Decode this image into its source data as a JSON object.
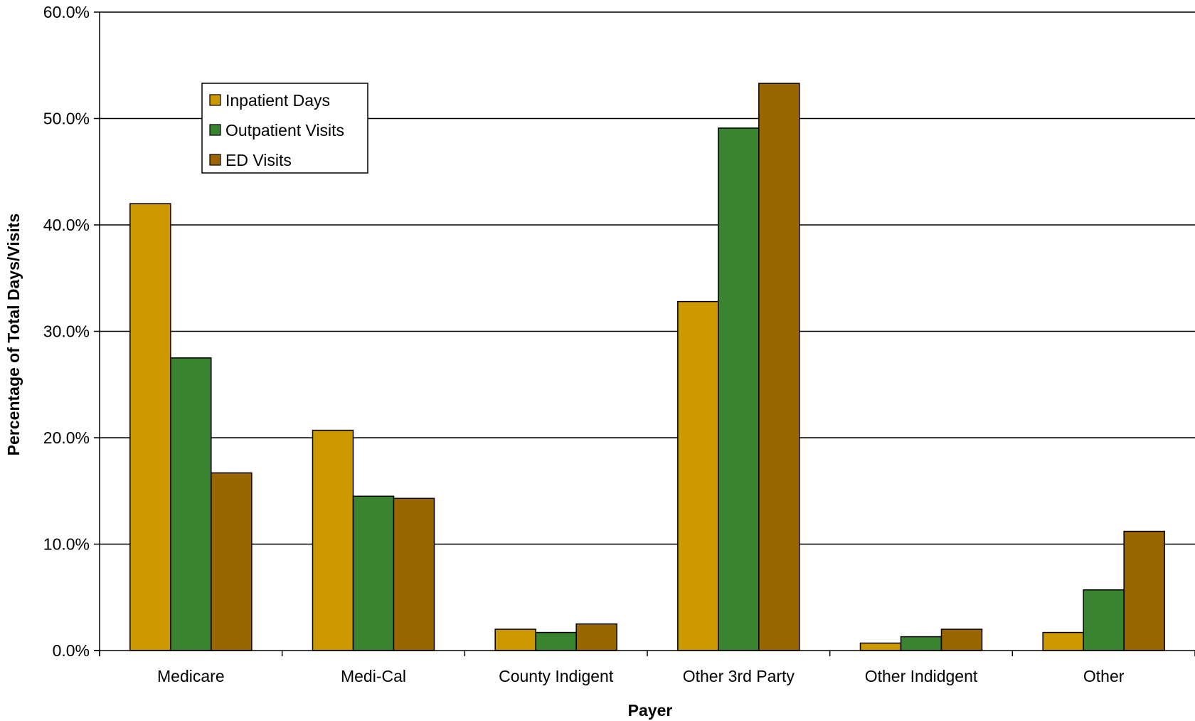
{
  "chart_data": {
    "type": "bar",
    "title": "",
    "xlabel": "Payer",
    "ylabel": "Percentage of Total Days/Visits",
    "ylim": [
      0,
      60
    ],
    "yticks": [
      "0.0%",
      "10.0%",
      "20.0%",
      "30.0%",
      "40.0%",
      "50.0%",
      "60.0%"
    ],
    "grid": true,
    "legend_position": "upper-left",
    "categories": [
      "Medicare",
      "Medi-Cal",
      "County Indigent",
      "Other 3rd Party",
      "Other Indidgent",
      "Other"
    ],
    "series": [
      {
        "name": "Inpatient Days",
        "color": "#CC9900",
        "values": [
          42.0,
          20.7,
          2.0,
          32.8,
          0.7,
          1.7
        ]
      },
      {
        "name": "Outpatient Visits",
        "color": "#3A8331",
        "values": [
          27.5,
          14.5,
          1.7,
          49.1,
          1.3,
          5.7
        ]
      },
      {
        "name": "ED Visits",
        "color": "#996600",
        "values": [
          16.7,
          14.3,
          2.5,
          53.3,
          2.0,
          11.2
        ]
      }
    ]
  }
}
